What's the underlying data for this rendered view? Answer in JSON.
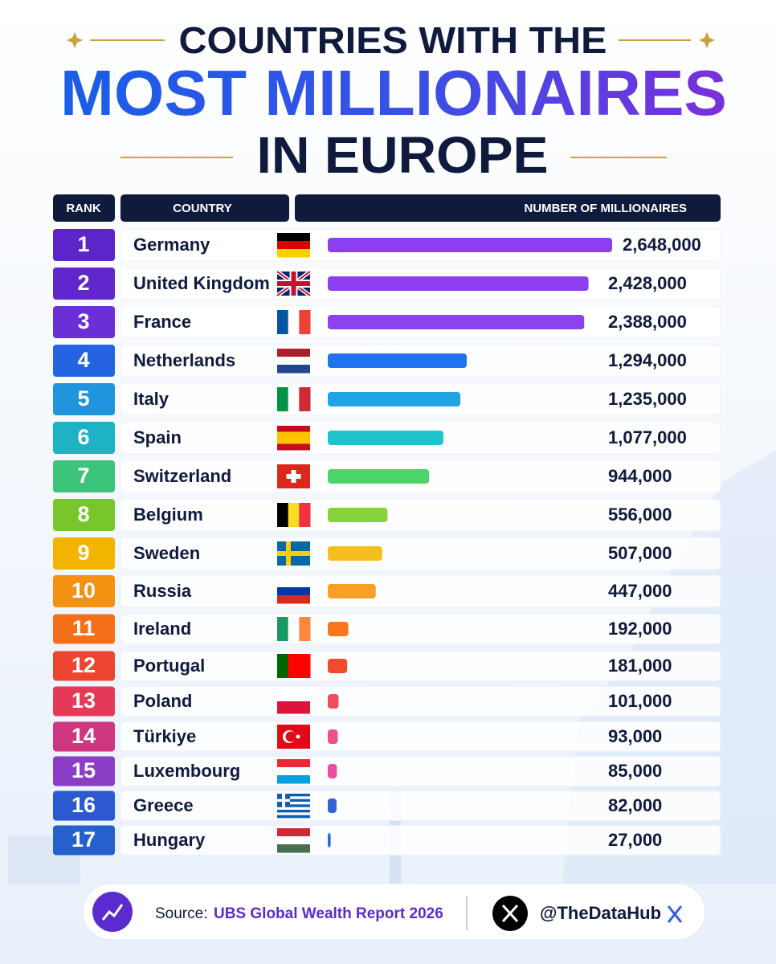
{
  "chart_data": {
    "type": "bar",
    "orientation": "horizontal",
    "title": [
      "COUNTRIES WITH THE",
      "MOST MILLIONAIRES",
      "IN EUROPE"
    ],
    "column_headers": [
      "RANK",
      "COUNTRY",
      "NUMBER OF MILLIONAIRES"
    ],
    "ranks": [
      1,
      2,
      3,
      4,
      5,
      6,
      7,
      8,
      9,
      10,
      11,
      12,
      13,
      14,
      15,
      16,
      17
    ],
    "categories": [
      "Germany",
      "United Kingdom",
      "France",
      "Netherlands",
      "Italy",
      "Spain",
      "Switzerland",
      "Belgium",
      "Sweden",
      "Russia",
      "Ireland",
      "Portugal",
      "Poland",
      "Türkiye",
      "Luxembourg",
      "Greece",
      "Hungary"
    ],
    "values": [
      2648000,
      2428000,
      2388000,
      1294000,
      1235000,
      1077000,
      944000,
      556000,
      507000,
      447000,
      192000,
      181000,
      101000,
      93000,
      85000,
      82000,
      27000
    ],
    "value_labels": [
      "2,648,000",
      "2,428,000",
      "2,388,000",
      "1,294,000",
      "1,235,000",
      "1,077,000",
      "944,000",
      "556,000",
      "507,000",
      "447,000",
      "192,000",
      "181,000",
      "101,000",
      "93,000",
      "85,000",
      "82,000",
      "27,000"
    ],
    "badge_colors": [
      "#5b25c9",
      "#6227cc",
      "#6a2fd6",
      "#2563e0",
      "#1f95dd",
      "#1db3c4",
      "#3cc47a",
      "#78c62c",
      "#f3b400",
      "#f39112",
      "#f36f1a",
      "#ec4630",
      "#e43a58",
      "#cf3680",
      "#8c3dc6",
      "#2c58d0",
      "#2461cc"
    ],
    "colors": [
      "#8b3ff0",
      "#8b3ff0",
      "#8c42ee",
      "#1f73ee",
      "#21a4e6",
      "#1fc3cc",
      "#4cd46a",
      "#86d23a",
      "#f6be1c",
      "#f7a023",
      "#f7761e",
      "#f24a2c",
      "#f04c60",
      "#f05088",
      "#ec4fa0",
      "#2f62d6",
      "#2b6ad8"
    ],
    "source_label": "Source:",
    "source": "UBS Global Wealth Report 2026",
    "handle": "@TheDataHub"
  }
}
